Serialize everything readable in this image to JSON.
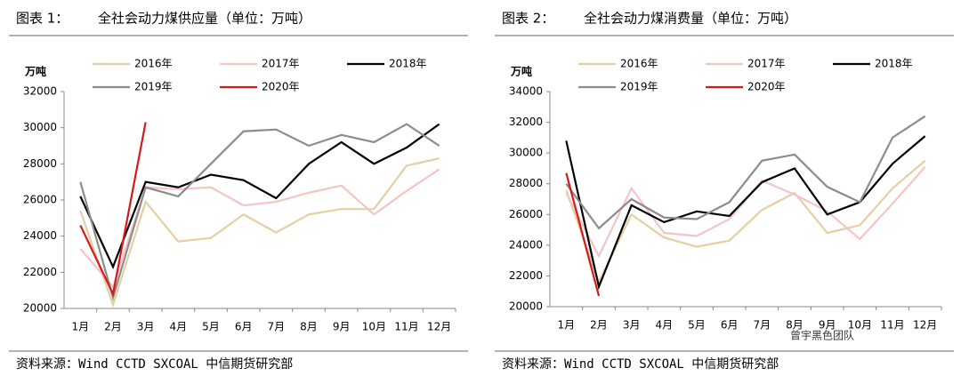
{
  "chart_data": [
    {
      "type": "line",
      "label": "图表 1：",
      "title": "全社会动力煤供应量（单位：万吨）",
      "y_unit": "万吨",
      "categories": [
        "1月",
        "2月",
        "3月",
        "4月",
        "5月",
        "6月",
        "7月",
        "8月",
        "9月",
        "10月",
        "11月",
        "12月"
      ],
      "ylim": [
        20000,
        32000
      ],
      "yticks": [
        20000,
        22000,
        24000,
        26000,
        28000,
        30000,
        32000
      ],
      "series": [
        {
          "name": "2016年",
          "color": "#e3cfa3",
          "values": [
            25400,
            20200,
            25900,
            23700,
            23900,
            25200,
            24200,
            25200,
            25500,
            25500,
            27900,
            28300
          ]
        },
        {
          "name": "2017年",
          "color": "#f5c4c4",
          "values": [
            23300,
            21200,
            26700,
            26600,
            26700,
            25700,
            25900,
            26400,
            26800,
            25200,
            26500,
            27700
          ]
        },
        {
          "name": "2018年",
          "color": "#000000",
          "values": [
            26200,
            22300,
            27000,
            26700,
            27400,
            27100,
            26100,
            28000,
            29200,
            28000,
            28900,
            30200
          ]
        },
        {
          "name": "2019年",
          "color": "#8c8c8c",
          "values": [
            27000,
            20600,
            26700,
            26200,
            28000,
            29800,
            29900,
            29000,
            29600,
            29200,
            30200,
            29000
          ]
        },
        {
          "name": "2020年",
          "color": "#d7191c",
          "values": [
            24600,
            20800,
            30300,
            null,
            null,
            null,
            null,
            null,
            null,
            null,
            null,
            null
          ]
        }
      ],
      "source": "资料来源：Wind CCTD SXCOAL 中信期货研究部"
    },
    {
      "type": "line",
      "label": "图表 2：",
      "title": "全社会动力煤消费量（单位：万吨）",
      "y_unit": "万吨",
      "categories": [
        "1月",
        "2月",
        "3月",
        "4月",
        "5月",
        "6月",
        "7月",
        "8月",
        "9月",
        "10月",
        "11月",
        "12月"
      ],
      "ylim": [
        20000,
        34000
      ],
      "yticks": [
        20000,
        22000,
        24000,
        26000,
        28000,
        30000,
        32000,
        34000
      ],
      "series": [
        {
          "name": "2016年",
          "color": "#e3cfa3",
          "values": [
            27600,
            21600,
            26000,
            24500,
            23900,
            24300,
            26300,
            27400,
            24800,
            25300,
            27700,
            29500
          ]
        },
        {
          "name": "2017年",
          "color": "#f5c4c4",
          "values": [
            27400,
            23300,
            27700,
            24800,
            24600,
            25700,
            28200,
            27300,
            26200,
            24400,
            26700,
            29100
          ]
        },
        {
          "name": "2018年",
          "color": "#000000",
          "values": [
            30800,
            21300,
            26600,
            25500,
            26200,
            25900,
            28100,
            29000,
            26000,
            26800,
            29300,
            31100
          ]
        },
        {
          "name": "2019年",
          "color": "#8c8c8c",
          "values": [
            28000,
            25100,
            27000,
            25800,
            25700,
            26800,
            29500,
            29900,
            27800,
            26800,
            31000,
            32400
          ]
        },
        {
          "name": "2020年",
          "color": "#d7191c",
          "values": [
            28700,
            20700,
            null,
            null,
            null,
            null,
            null,
            null,
            null,
            null,
            null,
            null
          ]
        }
      ],
      "source": "资料来源：Wind CCTD SXCOAL 中信期货研究部",
      "watermark": "曾宇黑色团队"
    }
  ]
}
